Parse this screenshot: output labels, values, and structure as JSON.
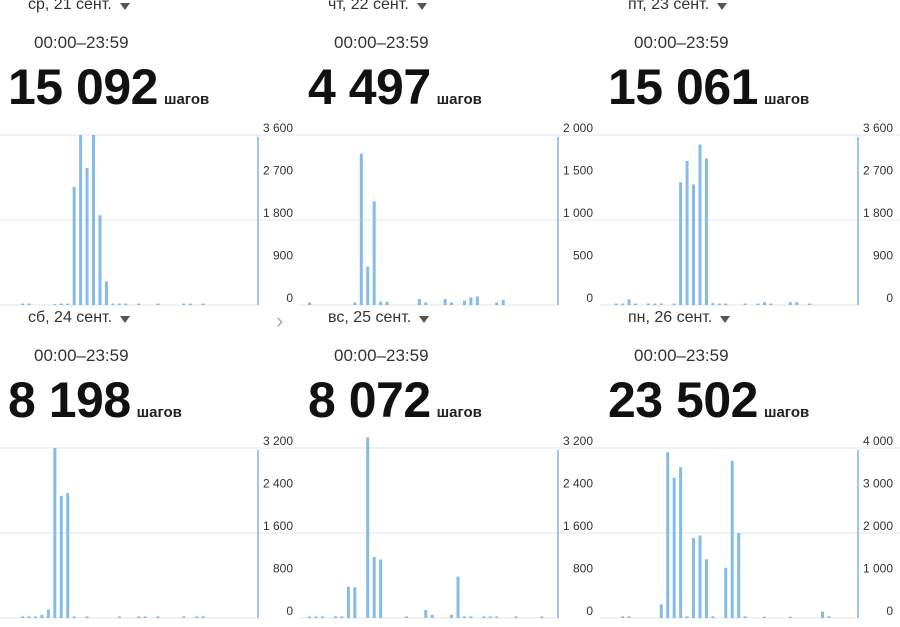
{
  "days": [
    {
      "date": "ср, 21 сент.",
      "time_range": "00:00–23:59",
      "steps": "15 092",
      "unit": "шагов"
    },
    {
      "date": "чт, 22 сент.",
      "time_range": "00:00–23:59",
      "steps": "4 497",
      "unit": "шагов"
    },
    {
      "date": "пт, 23 сент.",
      "time_range": "00:00–23:59",
      "steps": "15 061",
      "unit": "шагов"
    },
    {
      "date": "сб, 24 сент.",
      "time_range": "00:00–23:59",
      "steps": "8 198",
      "unit": "шагов"
    },
    {
      "date": "вс, 25 сент.",
      "time_range": "00:00–23:59",
      "steps": "8 072",
      "unit": "шагов"
    },
    {
      "date": "пн, 26 сент.",
      "time_range": "00:00–23:59",
      "steps": "23 502",
      "unit": "шагов"
    }
  ],
  "colors": {
    "bar": "#85bbe6",
    "grid": "#e4e4e4",
    "axis": "#7fb6e3"
  },
  "chart_data": [
    {
      "type": "bar",
      "ylim": [
        0,
        3600
      ],
      "yticks": [
        "0",
        "900",
        "1 800",
        "2 700",
        "3 600"
      ],
      "values": [
        0,
        0,
        0,
        30,
        30,
        0,
        0,
        0,
        20,
        30,
        30,
        2500,
        3600,
        2900,
        3600,
        1900,
        500,
        30,
        30,
        30,
        0,
        30,
        0,
        0,
        30,
        0,
        0,
        0,
        30,
        30,
        0,
        30,
        0,
        0,
        0,
        0,
        0,
        0,
        0,
        0
      ]
    },
    {
      "type": "bar",
      "ylim": [
        0,
        2000
      ],
      "yticks": [
        "0",
        "500",
        "1 000",
        "1 500",
        "2 000"
      ],
      "values": [
        0,
        30,
        0,
        0,
        0,
        0,
        0,
        0,
        30,
        1780,
        450,
        1220,
        40,
        40,
        0,
        0,
        0,
        0,
        70,
        30,
        0,
        0,
        70,
        30,
        0,
        50,
        90,
        100,
        0,
        0,
        30,
        60,
        0,
        0,
        0,
        0,
        0,
        0,
        0,
        0
      ]
    },
    {
      "type": "bar",
      "ylim": [
        0,
        3600
      ],
      "yticks": [
        "0",
        "900",
        "1 800",
        "2 700",
        "3 600"
      ],
      "values": [
        0,
        0,
        30,
        30,
        120,
        30,
        0,
        30,
        30,
        30,
        0,
        30,
        2600,
        3050,
        2550,
        3400,
        3100,
        40,
        30,
        30,
        0,
        0,
        30,
        0,
        30,
        60,
        30,
        0,
        0,
        60,
        60,
        0,
        30,
        0,
        0,
        0,
        0,
        0,
        0,
        0
      ]
    },
    {
      "type": "bar",
      "ylim": [
        0,
        3200
      ],
      "yticks": [
        "0",
        "800",
        "1 600",
        "2 400",
        "3 200"
      ],
      "values": [
        0,
        0,
        0,
        30,
        30,
        30,
        60,
        160,
        3200,
        2300,
        2350,
        30,
        0,
        30,
        0,
        0,
        0,
        0,
        30,
        0,
        0,
        30,
        30,
        0,
        30,
        0,
        0,
        0,
        30,
        0,
        30,
        30,
        0,
        0,
        0,
        0,
        0,
        0,
        0,
        0
      ]
    },
    {
      "type": "bar",
      "ylim": [
        0,
        3200
      ],
      "yticks": [
        "0",
        "800",
        "1 600",
        "2 400",
        "3 200"
      ],
      "values": [
        0,
        30,
        30,
        30,
        0,
        30,
        30,
        590,
        580,
        0,
        3400,
        1150,
        1100,
        0,
        0,
        0,
        30,
        0,
        0,
        150,
        60,
        0,
        0,
        60,
        780,
        30,
        30,
        0,
        30,
        30,
        30,
        0,
        0,
        30,
        0,
        0,
        0,
        30,
        0,
        0
      ]
    },
    {
      "type": "bar",
      "ylim": [
        0,
        4000
      ],
      "yticks": [
        "0",
        "1 000",
        "2 000",
        "3 000",
        "4 000"
      ],
      "values": [
        0,
        0,
        0,
        40,
        40,
        0,
        0,
        0,
        0,
        320,
        3900,
        3300,
        3550,
        40,
        1880,
        1940,
        1380,
        40,
        0,
        1180,
        3700,
        2000,
        40,
        0,
        0,
        30,
        0,
        0,
        0,
        30,
        0,
        0,
        0,
        0,
        150,
        40,
        0,
        0,
        0,
        0
      ]
    }
  ]
}
